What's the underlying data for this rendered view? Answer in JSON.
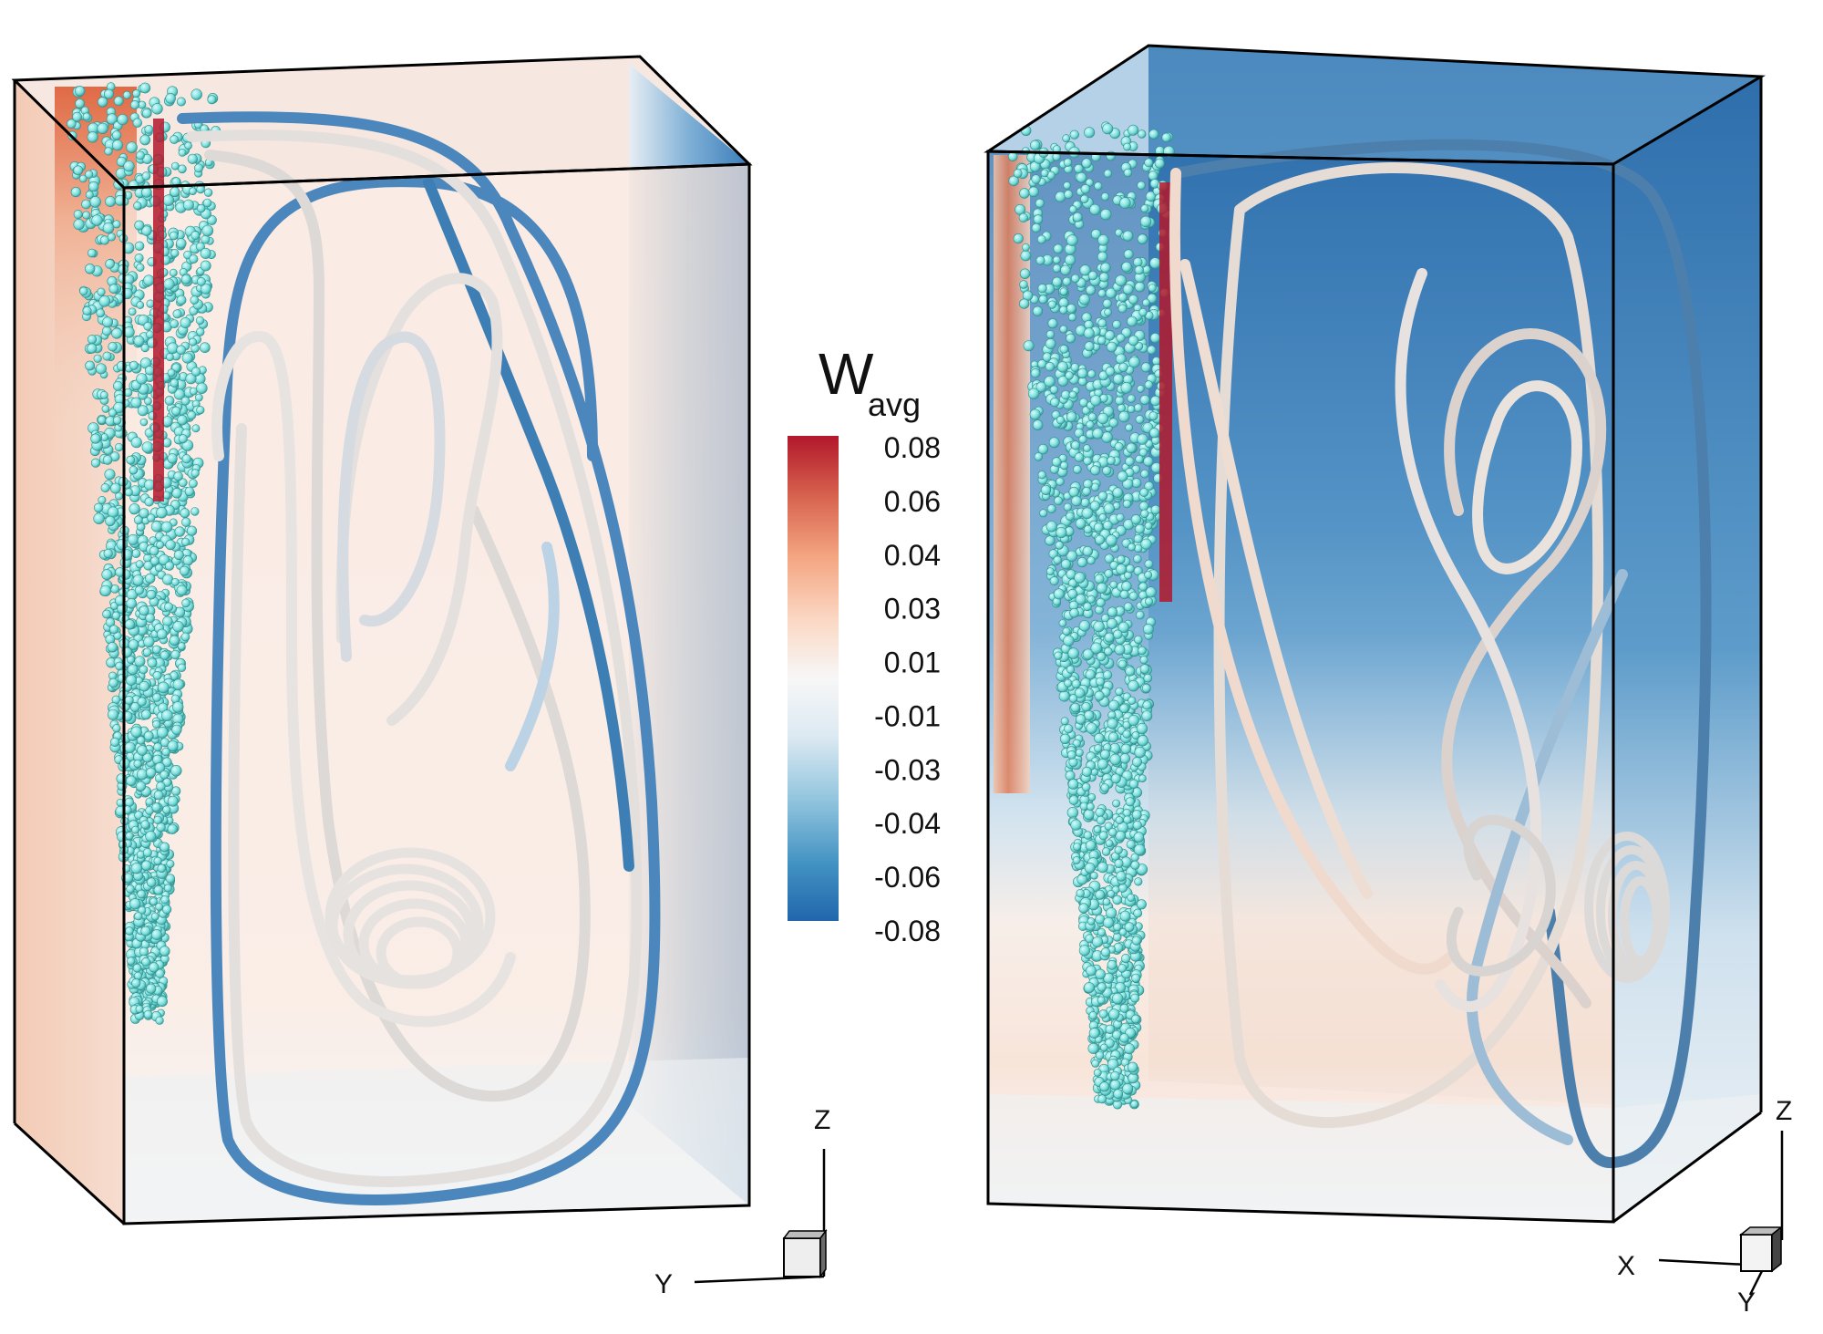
{
  "colorbar": {
    "title_main": "W",
    "title_sub": "avg",
    "ticks": [
      "0.08",
      "0.06",
      "0.04",
      "0.03",
      "0.01",
      "-0.01",
      "-0.03",
      "-0.04",
      "-0.06",
      "-0.08"
    ],
    "colors": [
      "#b2182b",
      "#d6604d",
      "#f4a582",
      "#fbd8c4",
      "#f7f7f7",
      "#dce9f2",
      "#92c5de",
      "#4393c3",
      "#2166ac"
    ]
  },
  "left_view": {
    "axis_vertical": "Z",
    "axis_horizontal": "Y"
  },
  "right_view": {
    "axis_vertical": "Z",
    "axis_horizontal": "X",
    "axis_depth": "Y"
  },
  "colors": {
    "particle": "#7ee0de",
    "particle_edge": "#2f8f8c",
    "tube_neutral": "#e6e2df",
    "tube_blue": "#3d7fb4",
    "box_edge": "#000000"
  }
}
